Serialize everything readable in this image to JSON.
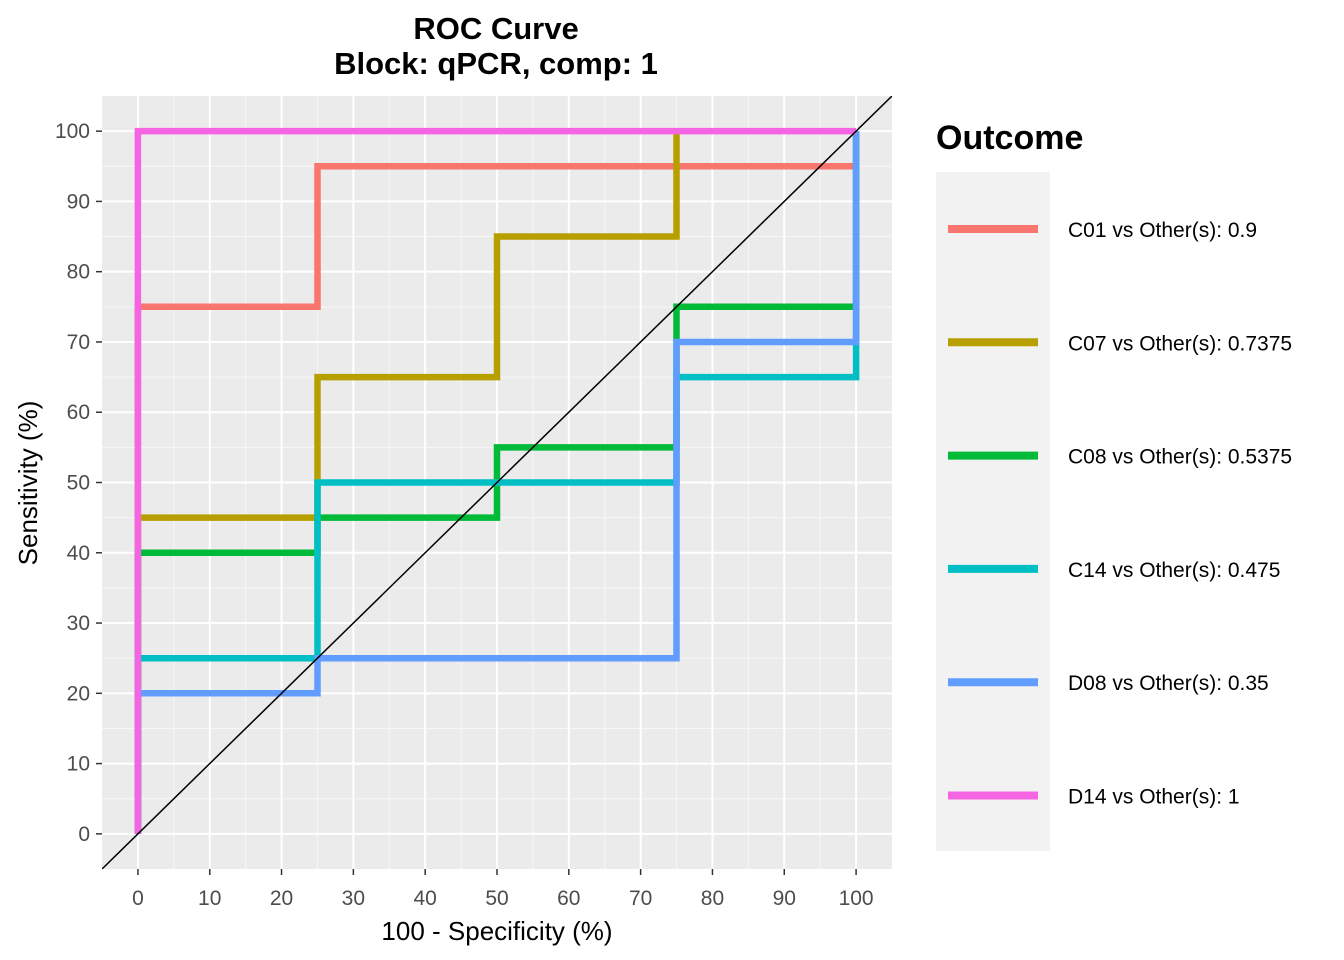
{
  "chart_data": {
    "type": "line",
    "title": "ROC Curve",
    "subtitle": "Block: qPCR, comp: 1",
    "xlabel": "100 - Specificity (%)",
    "ylabel": "Sensitivity (%)",
    "xlim": [
      -5,
      105
    ],
    "ylim": [
      -5,
      105
    ],
    "xticks": [
      0,
      10,
      20,
      30,
      40,
      50,
      60,
      70,
      80,
      90,
      100
    ],
    "yticks": [
      0,
      10,
      20,
      30,
      40,
      50,
      60,
      70,
      80,
      90,
      100
    ],
    "grid": true,
    "reference_line": {
      "x": [
        -5,
        105
      ],
      "y": [
        -5,
        105
      ],
      "color": "#000000"
    },
    "legend": {
      "title": "Outcome",
      "placement": "right"
    },
    "series": [
      {
        "name": "C01 vs Other(s): 0.9",
        "color": "#F8766D",
        "x": [
          0,
          0,
          0,
          25,
          25,
          100,
          100
        ],
        "y": [
          0,
          75,
          75,
          75,
          95,
          95,
          95
        ]
      },
      {
        "name": "C07 vs Other(s): 0.7375",
        "color": "#B79F00",
        "x": [
          0,
          0,
          25,
          25,
          50,
          50,
          75,
          75
        ],
        "y": [
          0,
          45,
          45,
          65,
          65,
          85,
          85,
          100
        ]
      },
      {
        "name": "C08 vs Other(s): 0.5375",
        "color": "#00BA38",
        "x": [
          0,
          0,
          25,
          25,
          50,
          50,
          75,
          75,
          100,
          100
        ],
        "y": [
          0,
          40,
          40,
          45,
          45,
          55,
          55,
          75,
          75,
          100
        ]
      },
      {
        "name": "C14 vs Other(s): 0.475",
        "color": "#00BFC4",
        "x": [
          0,
          0,
          25,
          25,
          75,
          75,
          100,
          100
        ],
        "y": [
          0,
          25,
          25,
          50,
          50,
          65,
          65,
          100
        ]
      },
      {
        "name": "D08 vs Other(s): 0.35",
        "color": "#619CFF",
        "x": [
          0,
          0,
          25,
          25,
          75,
          75,
          100,
          100
        ],
        "y": [
          0,
          20,
          20,
          25,
          25,
          70,
          70,
          100
        ]
      },
      {
        "name": "D14 vs Other(s): 1",
        "color": "#F564E3",
        "x": [
          0,
          0,
          100
        ],
        "y": [
          0,
          100,
          100
        ]
      }
    ]
  }
}
